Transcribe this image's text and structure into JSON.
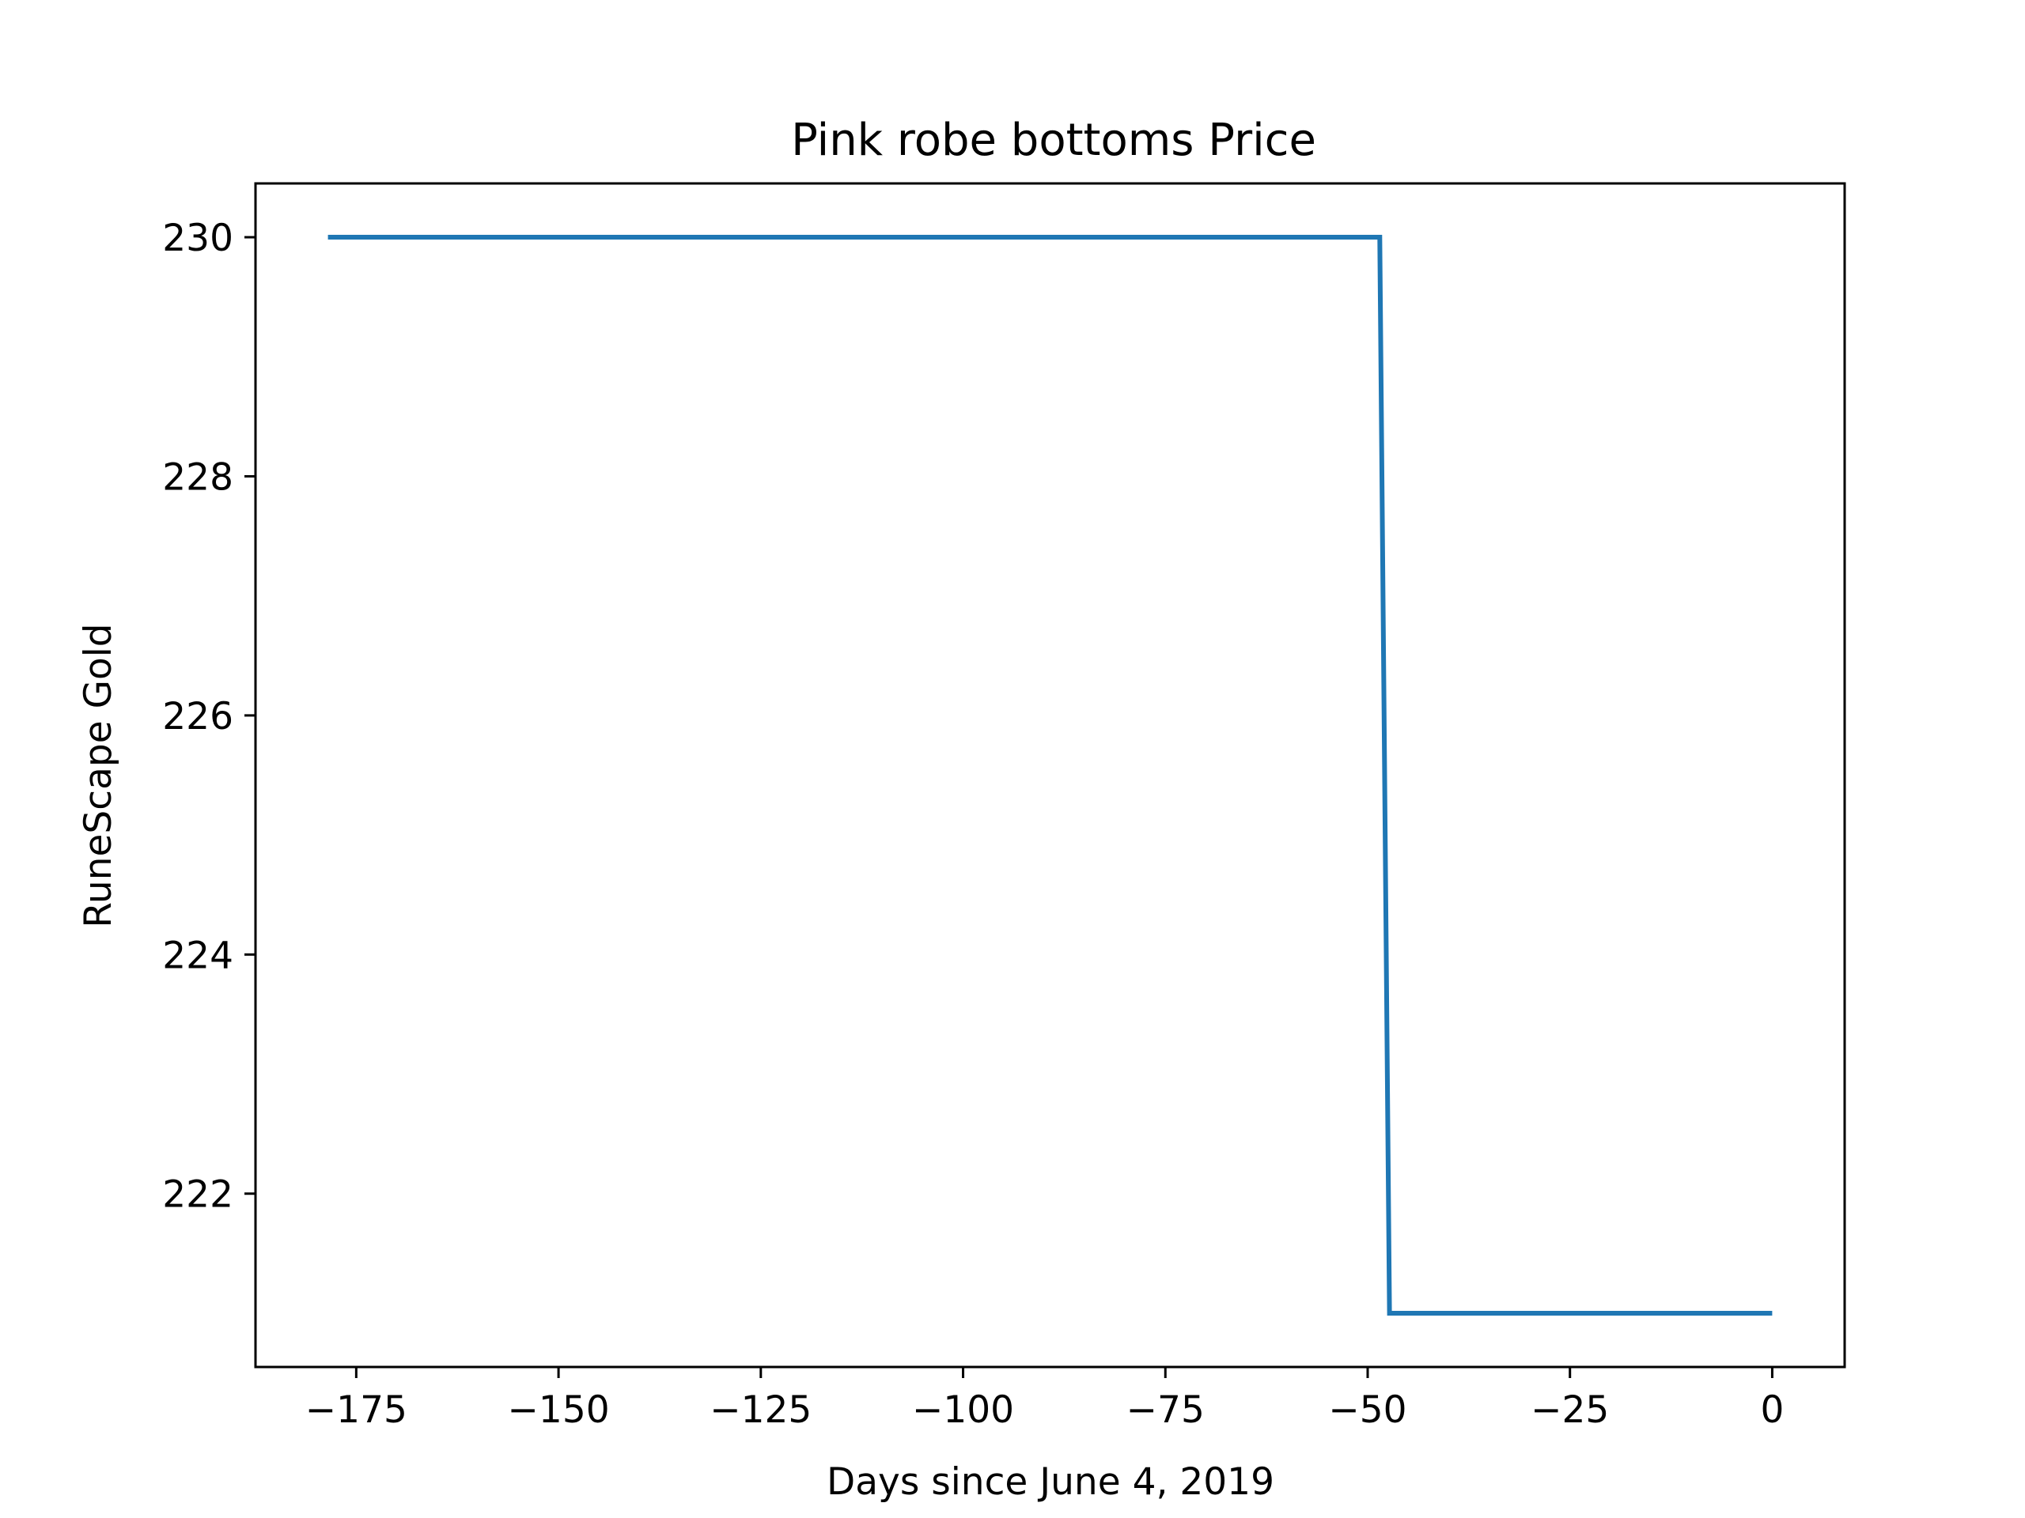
{
  "chart_data": {
    "type": "line",
    "title": "Pink robe bottoms Price",
    "xlabel": "Days since June 4, 2019",
    "ylabel": "RuneScape Gold",
    "xlim": [
      -187.45,
      8.95
    ],
    "ylim": [
      220.55,
      230.45
    ],
    "xticks": [
      -175,
      -150,
      -125,
      -100,
      -75,
      -50,
      -25,
      0
    ],
    "xtick_labels": [
      "−175",
      "−150",
      "−125",
      "−100",
      "−75",
      "−50",
      "−25",
      "0"
    ],
    "yticks": [
      222,
      224,
      226,
      228,
      230
    ],
    "ytick_labels": [
      "222",
      "224",
      "226",
      "228",
      "230"
    ],
    "grid": false,
    "series": [
      {
        "color": "#1f77b4",
        "x": [
          -178.5,
          -48.5,
          -47.3,
          0
        ],
        "y": [
          230,
          230,
          221,
          221
        ]
      }
    ]
  }
}
